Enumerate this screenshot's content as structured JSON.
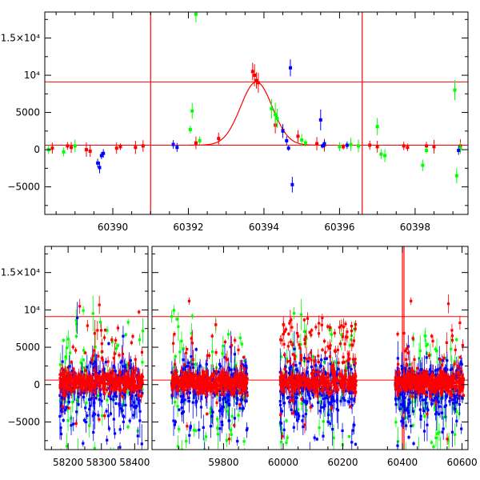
{
  "colors": {
    "red": "#ff0000",
    "green": "#00ff00",
    "blue": "#0000ff",
    "frame": "#000000"
  },
  "chart_data": [
    {
      "type": "scatter",
      "title": "",
      "xlabel": "",
      "ylabel": "",
      "xlim": [
        60388.2,
        60399.4
      ],
      "ylim": [
        -8700,
        18500
      ],
      "xticks": [
        60390,
        60392,
        60394,
        60396,
        60398
      ],
      "xtick_labels": [
        "60390",
        "60392",
        "60394",
        "60396",
        "60398"
      ],
      "yticks": [
        -5000,
        0,
        5000,
        10000,
        15000
      ],
      "ytick_labels": [
        "−5000",
        "0",
        "5000",
        "10⁴",
        "1.5×10⁴"
      ],
      "hlines": [
        600,
        9100
      ],
      "vlines": [
        60391.0,
        60396.6
      ],
      "model_curve": {
        "type": "gaussian",
        "baseline": 600,
        "peak": 9100,
        "center": 60393.8,
        "sigma": 0.42
      },
      "series": [
        {
          "color": "red",
          "points": [
            [
              60388.4,
              200
            ],
            [
              60388.8,
              500
            ],
            [
              60388.9,
              300
            ],
            [
              60389.3,
              0
            ],
            [
              60389.4,
              -200
            ],
            [
              60390.1,
              200
            ],
            [
              60390.2,
              400
            ],
            [
              60390.6,
              300
            ],
            [
              60390.8,
              500
            ],
            [
              60392.2,
              900
            ],
            [
              60392.8,
              1500
            ],
            [
              60393.7,
              10500
            ],
            [
              60393.75,
              10000
            ],
            [
              60393.8,
              9300
            ],
            [
              60393.85,
              9000
            ],
            [
              60394.3,
              3300
            ],
            [
              60394.5,
              2600
            ],
            [
              60394.9,
              1800
            ],
            [
              60395.4,
              800
            ],
            [
              60395.6,
              600
            ],
            [
              60396.1,
              400
            ],
            [
              60396.8,
              600
            ],
            [
              60397.0,
              400
            ],
            [
              60397.7,
              500
            ],
            [
              60397.8,
              300
            ],
            [
              60398.3,
              500
            ],
            [
              60398.5,
              400
            ],
            [
              60399.2,
              500
            ]
          ]
        },
        {
          "color": "green",
          "points": [
            [
              60388.3,
              0
            ],
            [
              60388.7,
              -300
            ],
            [
              60389.0,
              500
            ],
            [
              60392.2,
              18200
            ],
            [
              60392.1,
              5200
            ],
            [
              60392.05,
              2700
            ],
            [
              60392.3,
              1200
            ],
            [
              60394.2,
              5500
            ],
            [
              60394.3,
              4700
            ],
            [
              60394.35,
              4200
            ],
            [
              60395.0,
              1300
            ],
            [
              60395.1,
              900
            ],
            [
              60396.0,
              400
            ],
            [
              60396.3,
              700
            ],
            [
              60396.5,
              500
            ],
            [
              60397.0,
              3100
            ],
            [
              60397.1,
              -600
            ],
            [
              60397.2,
              -800
            ],
            [
              60398.2,
              -2100
            ],
            [
              60398.3,
              -100
            ],
            [
              60399.05,
              8000
            ],
            [
              60399.1,
              -3500
            ],
            [
              60399.2,
              200
            ]
          ]
        },
        {
          "color": "blue",
          "points": [
            [
              60389.6,
              -1800
            ],
            [
              60389.65,
              -2400
            ],
            [
              60389.7,
              -800
            ],
            [
              60389.75,
              -500
            ],
            [
              60391.6,
              700
            ],
            [
              60391.7,
              300
            ],
            [
              60394.5,
              2500
            ],
            [
              60394.6,
              1200
            ],
            [
              60394.65,
              200
            ],
            [
              60394.7,
              11000
            ],
            [
              60394.75,
              -4700
            ],
            [
              60395.5,
              4000
            ],
            [
              60395.55,
              500
            ],
            [
              60395.6,
              800
            ],
            [
              60396.2,
              600
            ],
            [
              60399.15,
              -100
            ]
          ]
        }
      ]
    },
    {
      "type": "scatter",
      "title": "",
      "xlabel": "",
      "ylabel": "",
      "ylim": [
        -8700,
        18500
      ],
      "yticks": [
        -5000,
        0,
        5000,
        10000,
        15000
      ],
      "ytick_labels": [
        "−5000",
        "0",
        "5000",
        "10⁴",
        "1.5×10⁴"
      ],
      "hlines": [
        600,
        9100
      ],
      "vlines": [
        60400
      ],
      "broken_x_axis": [
        {
          "xlim": [
            58130,
            58440
          ],
          "xticks": [
            58200,
            58300,
            58400
          ],
          "xtick_labels": [
            "58200",
            "58300",
            "58400"
          ]
        },
        {
          "xlim": [
            59560,
            60620
          ],
          "xticks": [
            59800,
            60000,
            60200,
            60400,
            60600
          ],
          "xtick_labels": [
            "59800",
            "60000",
            "60200",
            "60400",
            "60600"
          ]
        }
      ],
      "seasons": [
        [
          58175,
          58425
        ],
        [
          59625,
          59880
        ],
        [
          59990,
          60245
        ],
        [
          60375,
          60605
        ]
      ]
    }
  ]
}
